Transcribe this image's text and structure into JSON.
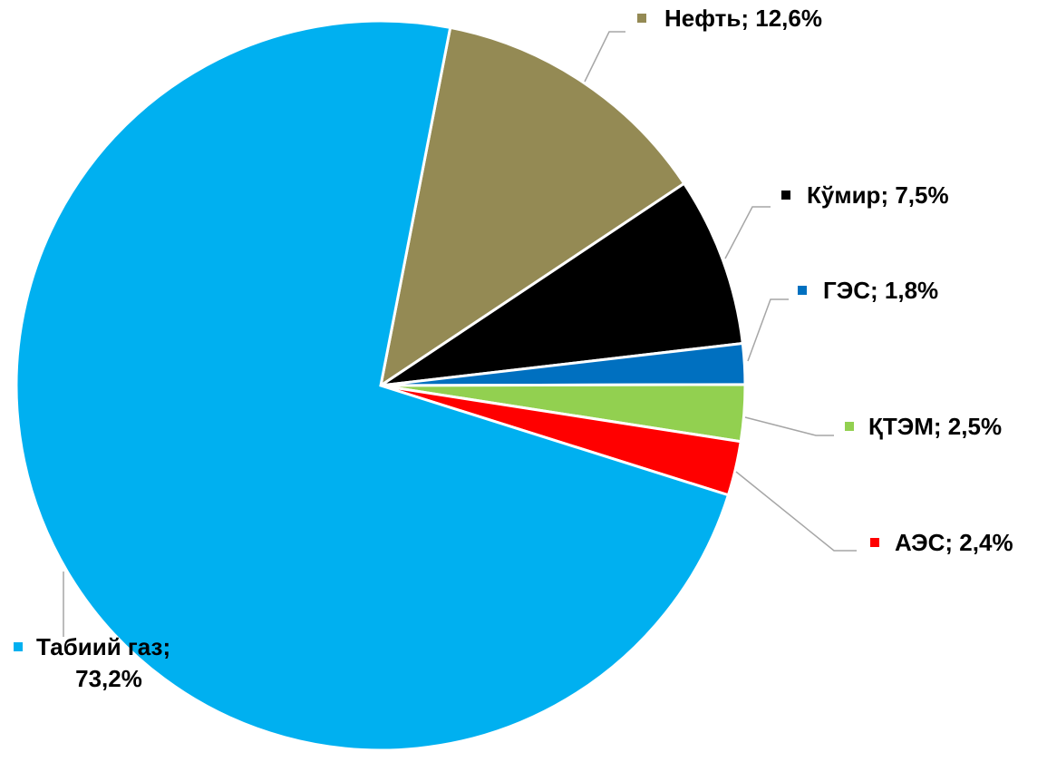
{
  "chart_data": {
    "type": "pie",
    "categories": [
      "Нефть",
      "Кўмир",
      "ГЭС",
      "ҚТЭМ",
      "АЭС",
      "Табиий газ"
    ],
    "values": [
      12.6,
      7.5,
      1.8,
      2.5,
      2.4,
      73.2
    ],
    "value_labels": [
      "12,6%",
      "7,5%",
      "1,8%",
      "2,5%",
      "2,4%",
      "73,2%"
    ],
    "separator": "; ",
    "colors": [
      "#948a54",
      "#000000",
      "#0070c0",
      "#92d050",
      "#ff0000",
      "#00b0f0"
    ]
  }
}
